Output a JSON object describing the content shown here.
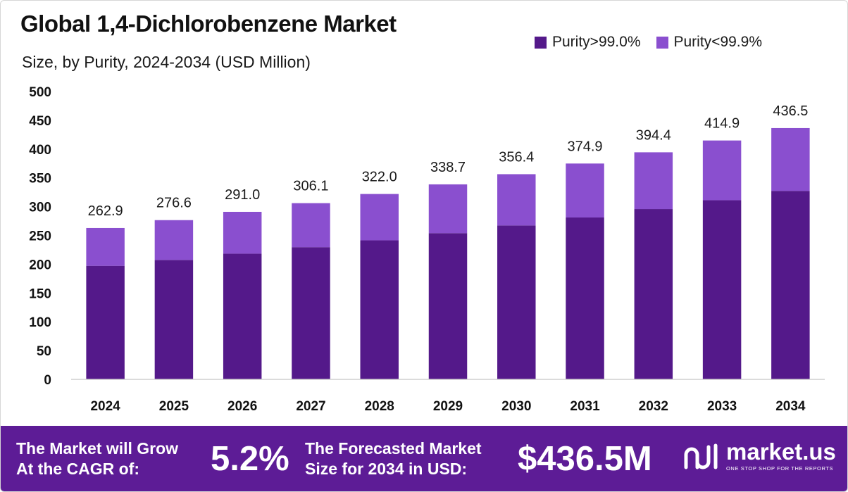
{
  "chart_data": {
    "type": "bar",
    "stacked": true,
    "title": "Global 1,4-Dichlorobenzene Market",
    "subtitle": "Size, by Purity, 2024-2034 (USD Million)",
    "categories": [
      "2024",
      "2025",
      "2026",
      "2027",
      "2028",
      "2029",
      "2030",
      "2031",
      "2032",
      "2033",
      "2034"
    ],
    "series": [
      {
        "name": "Purity>99.0%",
        "color": "#54198a",
        "values": [
          197.2,
          207.5,
          218.3,
          229.6,
          241.5,
          254.0,
          267.3,
          281.2,
          295.8,
          311.2,
          327.4
        ]
      },
      {
        "name": "Purity<99.9%",
        "color": "#8a4fcf",
        "values": [
          65.7,
          69.1,
          72.7,
          76.5,
          80.5,
          84.7,
          89.1,
          93.7,
          98.6,
          103.7,
          109.1
        ]
      }
    ],
    "totals": [
      "262.9",
      "276.6",
      "291.0",
      "306.1",
      "322.0",
      "338.7",
      "356.4",
      "374.9",
      "394.4",
      "414.9",
      "436.5"
    ],
    "ylim": [
      0,
      500
    ],
    "yticks": [
      "0",
      "50",
      "100",
      "150",
      "200",
      "250",
      "300",
      "350",
      "400",
      "450",
      "500"
    ],
    "grid": false,
    "legend_position": "top-right"
  },
  "footer": {
    "cagr_line1": "The Market will Grow",
    "cagr_line2": "At the CAGR of:",
    "cagr_value": "5.2%",
    "forecast_line1": "The Forecasted Market",
    "forecast_line2": "Size for 2034 in USD:",
    "forecast_value": "$436.5M",
    "background_color": "#5d1c96"
  },
  "brand": {
    "name": "market.us",
    "tagline": "ONE STOP SHOP FOR THE REPORTS",
    "logo_icon": "market-us-logo-icon"
  }
}
